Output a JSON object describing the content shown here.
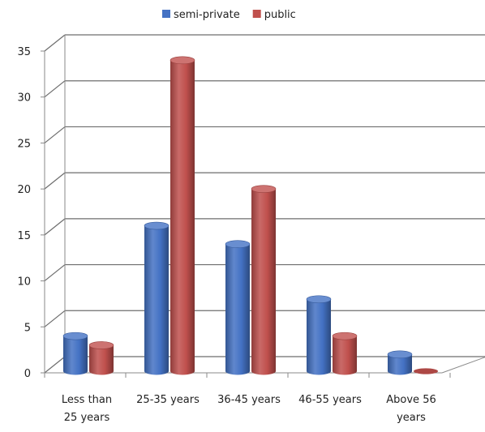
{
  "chart_data": {
    "type": "bar",
    "title": "",
    "xlabel": "",
    "ylabel": "",
    "categories": [
      [
        "Less than",
        "25 years"
      ],
      [
        "25-35 years"
      ],
      [
        "36-45 years"
      ],
      [
        "46-55 years"
      ],
      [
        "Above 56",
        "years"
      ]
    ],
    "series": [
      {
        "name": "semi-private",
        "values": [
          4,
          16,
          14,
          8,
          2
        ],
        "color": "#4472C4"
      },
      {
        "name": "public",
        "values": [
          3,
          34,
          20,
          4,
          0
        ],
        "color": "#C0504D"
      }
    ],
    "ylim": [
      0,
      35
    ],
    "yticks": [
      0,
      5,
      10,
      15,
      20,
      25,
      30,
      35
    ],
    "grid": true,
    "legend": "top-center",
    "style": "3d-cylinder"
  }
}
